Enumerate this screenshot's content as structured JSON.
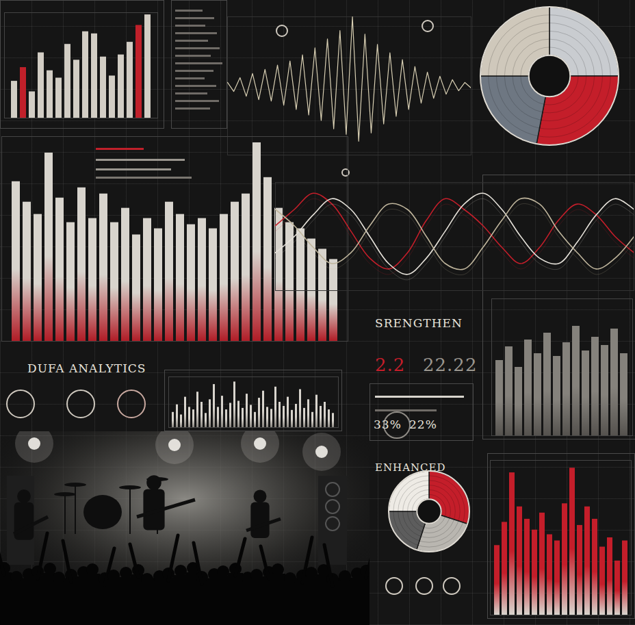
{
  "chart_data": [
    {
      "type": "bar",
      "categories": [
        null,
        null,
        null,
        null,
        null,
        null,
        null,
        null,
        null,
        null,
        null,
        null,
        null,
        null,
        null,
        null
      ],
      "values": [
        35,
        48,
        25,
        62,
        45,
        38,
        70,
        55,
        82,
        80,
        58,
        40,
        60,
        72,
        88,
        98
      ],
      "colors": [
        "#d2cdc4",
        "#c0202a",
        "#d2cdc4",
        "#d2cdc4",
        "#d2cdc4",
        "#d2cdc4",
        "#d2cdc4",
        "#d2cdc4",
        "#d2cdc4",
        "#d2cdc4",
        "#d2cdc4",
        "#d2cdc4",
        "#d2cdc4",
        "#d2cdc4",
        "#c0202a",
        "#d2cdc4"
      ],
      "ylim": [
        0,
        100
      ],
      "yticks": [],
      "tick_labels": false
    },
    {
      "type": "line",
      "x": [
        0,
        1,
        2,
        3,
        4,
        5,
        6,
        7,
        8,
        9,
        10,
        11,
        12,
        13,
        14,
        15,
        16,
        17,
        18,
        19,
        20,
        21,
        22,
        23,
        24,
        25,
        26,
        27,
        28,
        29,
        30,
        31,
        32,
        33,
        34,
        35,
        36,
        37,
        38,
        39
      ],
      "values": [
        0.5,
        -0.8,
        1.2,
        -1.5,
        1.8,
        -2,
        2.4,
        -2.2,
        3,
        -2.8,
        3.6,
        -3.4,
        4.5,
        -4.2,
        5.5,
        -5,
        6.8,
        -6.2,
        8,
        -7,
        10,
        -8,
        7.5,
        -6.8,
        6,
        -5.5,
        4.8,
        -4.4,
        3.8,
        -3.4,
        2.8,
        -2.5,
        2,
        -1.8,
        1.4,
        -1.2,
        0.9,
        -0.7,
        0.5,
        -0.3
      ],
      "color": "#d9d0b4",
      "xlim": [
        0,
        39
      ],
      "ylim": [
        -10,
        10
      ],
      "xticks": [],
      "yticks": [],
      "tick_labels": false
    },
    {
      "type": "pie",
      "categories": [
        null,
        null,
        null,
        null
      ],
      "values": [
        25,
        28,
        22,
        25
      ],
      "colors": [
        "#c9ccd0",
        "#c41e2a",
        "#6e7782",
        "#cfc8bb"
      ]
    },
    {
      "type": "bar",
      "categories": [
        null,
        null,
        null,
        null,
        null,
        null,
        null,
        null,
        null,
        null,
        null,
        null,
        null,
        null,
        null,
        null,
        null,
        null,
        null,
        null,
        null,
        null,
        null,
        null,
        null,
        null,
        null,
        null,
        null,
        null
      ],
      "values": [
        78,
        68,
        62,
        92,
        70,
        58,
        75,
        60,
        72,
        58,
        65,
        52,
        60,
        55,
        68,
        62,
        57,
        60,
        55,
        62,
        68,
        72,
        97,
        80,
        65,
        58,
        55,
        50,
        45,
        40
      ],
      "color": "#d8d4cd",
      "ylim": [
        0,
        100
      ],
      "yticks": [],
      "tick_labels": false
    },
    {
      "type": "line",
      "x": [
        0,
        1,
        2,
        3,
        4,
        5,
        6,
        7,
        8,
        9,
        10,
        11,
        12,
        13,
        14,
        15,
        16,
        17,
        18,
        19
      ],
      "series": [
        {
          "color": "#c41e2a",
          "values": [
            0.2,
            0.5,
            0.8,
            0.6,
            0.1,
            -0.4,
            -0.6,
            -0.3,
            0.3,
            0.7,
            0.5,
            0.2,
            -0.2,
            -0.5,
            -0.2,
            0.3,
            0.6,
            0.4,
            0,
            -0.3
          ]
        },
        {
          "color": "#e6e2da",
          "values": [
            -0.3,
            0,
            0.4,
            0.7,
            0.5,
            0,
            -0.5,
            -0.7,
            -0.4,
            0.1,
            0.6,
            0.8,
            0.5,
            0,
            -0.4,
            -0.5,
            -0.1,
            0.4,
            0.7,
            0.5
          ]
        },
        {
          "color": "#bfb59c",
          "values": [
            0.5,
            0.2,
            -0.2,
            -0.5,
            -0.3,
            0.2,
            0.6,
            0.5,
            0,
            -0.5,
            -0.6,
            -0.2,
            0.3,
            0.7,
            0.6,
            0.1,
            -0.3,
            -0.6,
            -0.4,
            0
          ]
        }
      ],
      "xlim": [
        0,
        19
      ],
      "ylim": [
        -1,
        1
      ],
      "xticks": [],
      "yticks": [],
      "tick_labels": false
    },
    {
      "type": "bar",
      "categories": [
        null,
        null,
        null,
        null,
        null,
        null,
        null,
        null,
        null,
        null,
        null,
        null,
        null,
        null
      ],
      "values": [
        55,
        65,
        50,
        70,
        60,
        75,
        58,
        68,
        80,
        62,
        72,
        66,
        78,
        60
      ],
      "color": "#85827c",
      "ylim": [
        0,
        100
      ],
      "yticks": [],
      "tick_labels": false
    },
    {
      "type": "bar",
      "title": "DUFA ANALYTICS",
      "categories": [
        null,
        null,
        null,
        null,
        null,
        null,
        null,
        null,
        null,
        null,
        null,
        null,
        null,
        null,
        null,
        null,
        null,
        null,
        null,
        null,
        null,
        null,
        null,
        null,
        null,
        null,
        null,
        null,
        null,
        null,
        null,
        null,
        null,
        null,
        null,
        null,
        null,
        null,
        null,
        null
      ],
      "values": [
        30,
        45,
        25,
        60,
        40,
        35,
        70,
        50,
        28,
        55,
        85,
        40,
        62,
        35,
        48,
        90,
        52,
        38,
        66,
        44,
        30,
        58,
        72,
        40,
        36,
        80,
        50,
        42,
        60,
        34,
        46,
        75,
        38,
        55,
        30,
        64,
        42,
        50,
        35,
        28
      ],
      "color": "#d8d4cd",
      "ylim": [
        0,
        100
      ],
      "yticks": [],
      "tick_labels": false
    },
    {
      "type": "pie",
      "title": "ENHANCED",
      "categories": [
        null,
        null,
        null,
        null
      ],
      "values": [
        30,
        25,
        20,
        25
      ],
      "colors": [
        "#c41e2a",
        "#b9b6b0",
        "#5d5d5d",
        "#eeebe5"
      ]
    },
    {
      "type": "bar",
      "categories": [
        null,
        null,
        null,
        null,
        null,
        null,
        null,
        null,
        null,
        null,
        null,
        null,
        null,
        null,
        null,
        null,
        null,
        null
      ],
      "values": [
        45,
        60,
        92,
        70,
        62,
        55,
        66,
        52,
        48,
        72,
        95,
        58,
        70,
        62,
        44,
        50,
        35,
        48
      ],
      "color": "#c41e2a",
      "ylim": [
        0,
        100
      ],
      "yticks": [],
      "tick_labels": false
    }
  ],
  "annotations": [
    "SRENGTHEN",
    "2.2",
    "22.22",
    "33%",
    "22%"
  ]
}
